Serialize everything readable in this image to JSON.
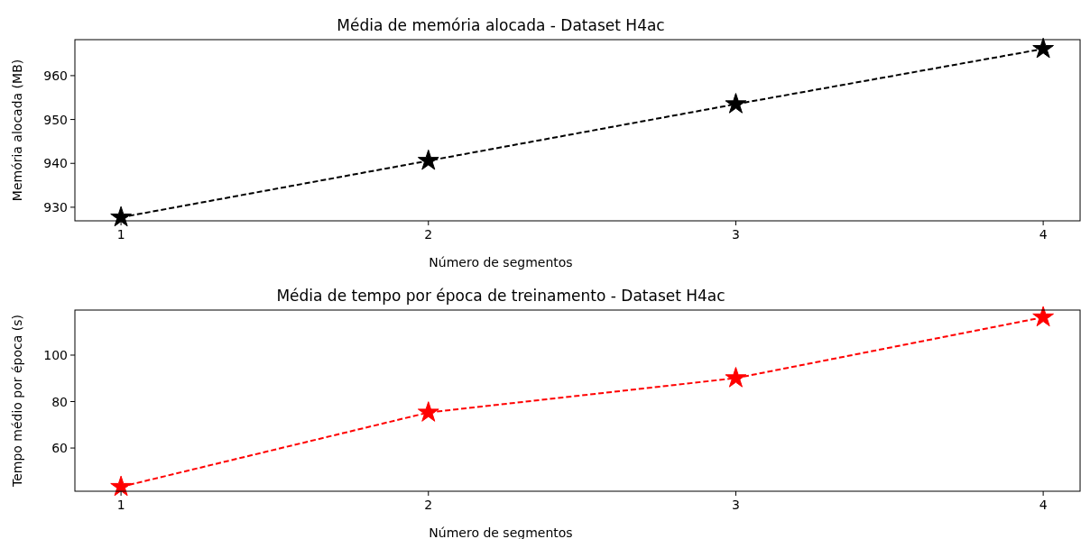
{
  "chart_data": [
    {
      "type": "line",
      "title": "Média de memória alocada - Dataset H4ac",
      "xlabel": "Número de segmentos",
      "ylabel": "Memória alocada (MB)",
      "x": [
        1,
        2,
        3,
        4
      ],
      "series": [
        {
          "color": "#000000",
          "values": [
            927.7,
            940.6,
            953.5,
            966.1
          ]
        }
      ],
      "xlim": [
        0.85,
        4.12
      ],
      "xticks": [
        1,
        2,
        3,
        4
      ],
      "ylim": [
        926.9,
        968.2
      ],
      "yticks": [
        930,
        940,
        950,
        960
      ],
      "marker": "star",
      "line_style": "dashed",
      "grid": false
    },
    {
      "type": "line",
      "title": "Média de tempo por época de treinamento - Dataset H4ac",
      "xlabel": "Número de segmentos",
      "ylabel": "Tempo médio por época (s)",
      "x": [
        1,
        2,
        3,
        4
      ],
      "series": [
        {
          "color": "#ff0000",
          "values": [
            43.3,
            75.3,
            90.1,
            116.3
          ]
        }
      ],
      "xlim": [
        0.85,
        4.12
      ],
      "xticks": [
        1,
        2,
        3,
        4
      ],
      "ylim": [
        41.4,
        119.4
      ],
      "yticks": [
        60,
        80,
        100
      ],
      "marker": "star",
      "line_style": "dashed",
      "grid": false
    }
  ]
}
